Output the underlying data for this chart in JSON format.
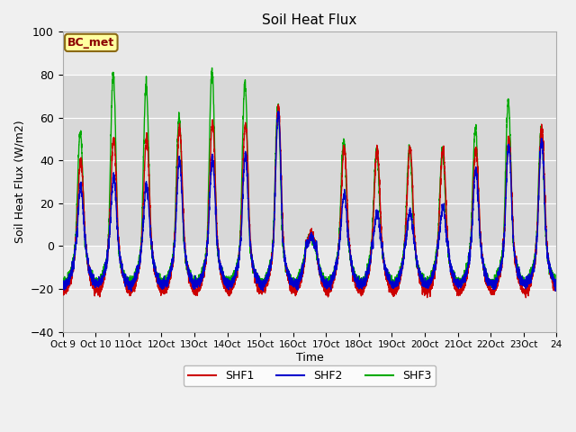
{
  "title": "Soil Heat Flux",
  "ylabel": "Soil Heat Flux (W/m2)",
  "xlabel": "Time",
  "ylim": [
    -40,
    100
  ],
  "xlim": [
    0,
    15
  ],
  "fig_bg_color": "#f0f0f0",
  "plot_bg_color": "#e8e8e8",
  "band_color": "#d8d8d8",
  "grid_color": "white",
  "annotation_text": "BC_met",
  "annotation_bg": "#ffffa0",
  "annotation_border": "#8B6914",
  "annotation_text_color": "#8B0000",
  "series": [
    "SHF1",
    "SHF2",
    "SHF3"
  ],
  "colors": [
    "#cc0000",
    "#0000cc",
    "#00aa00"
  ],
  "start_day": 9,
  "n_days": 15,
  "tick_labels": [
    "Oct 9",
    "Oct 10",
    "11Oct",
    "12Oct",
    "13Oct",
    "14Oct",
    "15Oct",
    "16Oct",
    "17Oct",
    "18Oct",
    "19Oct",
    "20Oct",
    "21Oct",
    "22Oct",
    "23Oct",
    "24"
  ],
  "yticks": [
    -40,
    -20,
    0,
    20,
    40,
    60,
    80,
    100
  ]
}
